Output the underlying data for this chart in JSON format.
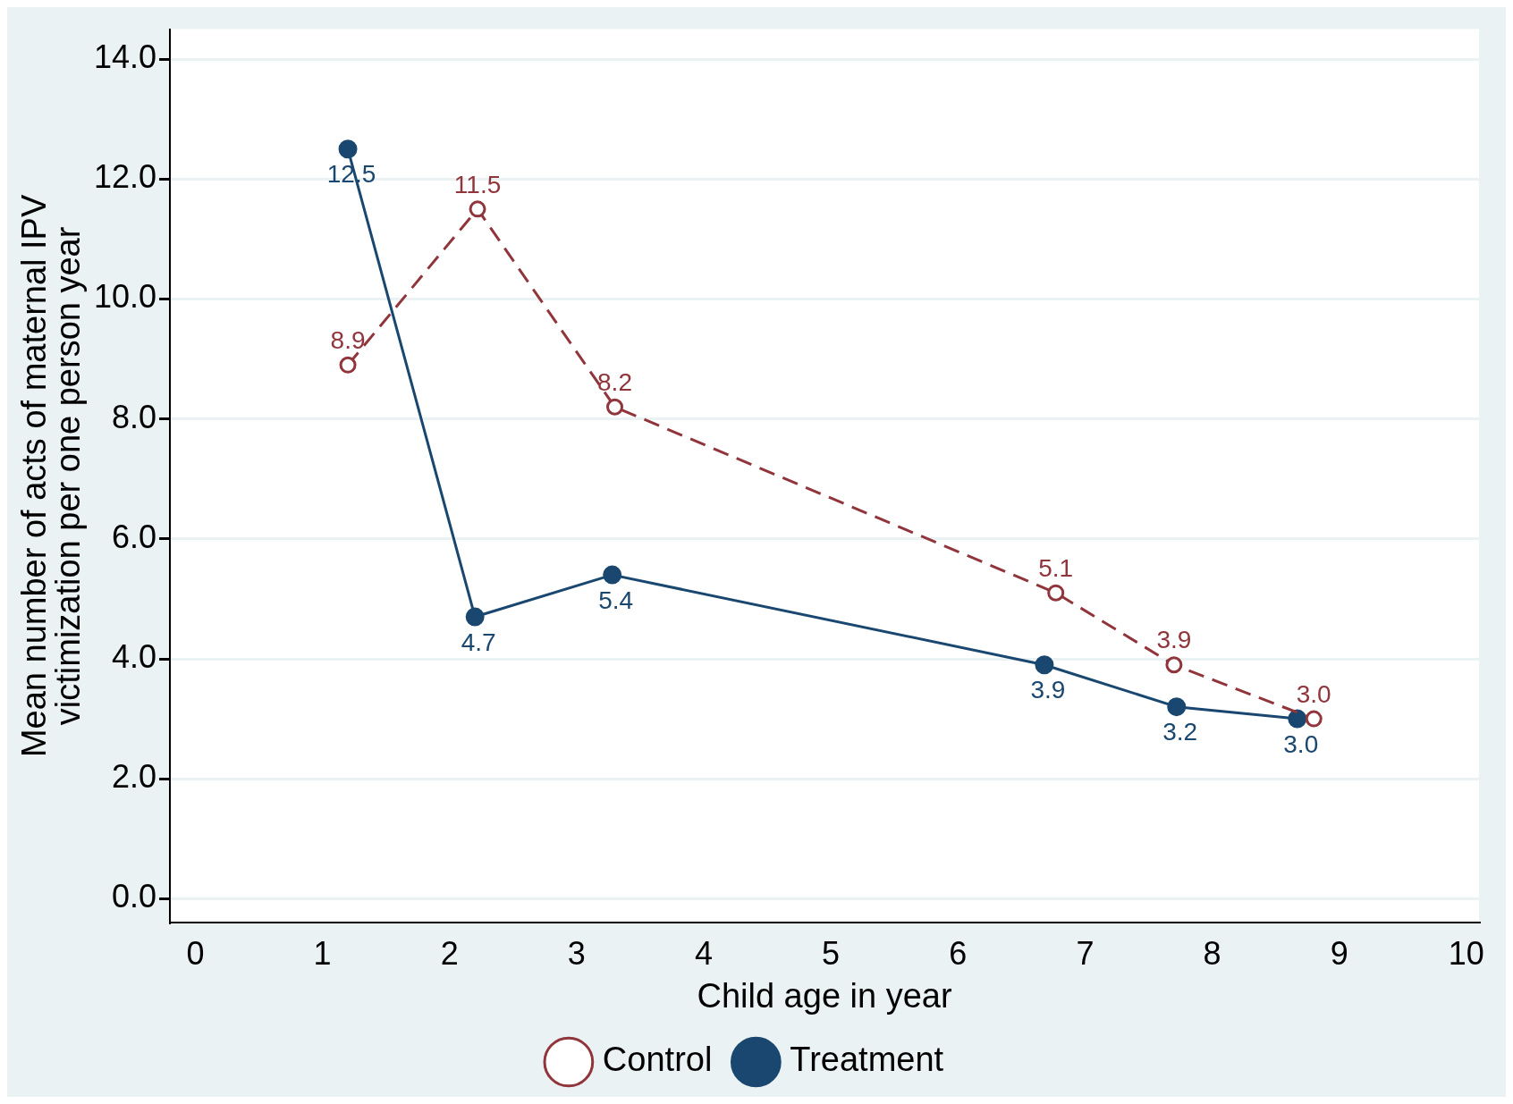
{
  "chart_data": {
    "type": "line",
    "xlabel": "Child age in year",
    "ylabel": "Mean number of acts of maternal IPV\nvictimization per one person year",
    "xlim": [
      -0.2,
      10.1
    ],
    "xticks": [
      0,
      1,
      2,
      3,
      4,
      5,
      6,
      7,
      8,
      9,
      10
    ],
    "ylim": [
      -0.4,
      14.5
    ],
    "yticks": [
      {
        "value": 0,
        "label": "0.0"
      },
      {
        "value": 2,
        "label": "2.0"
      },
      {
        "value": 4,
        "label": "4.0"
      },
      {
        "value": 6,
        "label": "6.0"
      },
      {
        "value": 8,
        "label": "8.0"
      },
      {
        "value": 10,
        "label": "10.0"
      },
      {
        "value": 12,
        "label": "12.0"
      },
      {
        "value": 14,
        "label": "14.0"
      }
    ],
    "grid": "y",
    "legend": "bottom",
    "series": [
      {
        "name": "Control",
        "color": "#90353b",
        "marker": "circle",
        "line_style": "dashed",
        "x": [
          1.2,
          2.22,
          3.3,
          6.77,
          7.7,
          8.8
        ],
        "values": [
          8.9,
          11.5,
          8.2,
          5.1,
          3.9,
          3.0
        ],
        "value_labels": [
          "8.9",
          "11.5",
          "8.2",
          "5.1",
          "3.9",
          "3.0"
        ]
      },
      {
        "name": "Treatment",
        "color": "#1a476f",
        "marker": "circle",
        "line_style": "solid",
        "x": [
          1.2,
          2.2,
          3.28,
          6.68,
          7.72,
          8.67
        ],
        "values": [
          12.5,
          4.7,
          5.4,
          3.9,
          3.2,
          3.0
        ],
        "value_labels": [
          "12.5",
          "4.7",
          "5.4",
          "3.9",
          "3.2",
          "3.0"
        ]
      }
    ]
  }
}
